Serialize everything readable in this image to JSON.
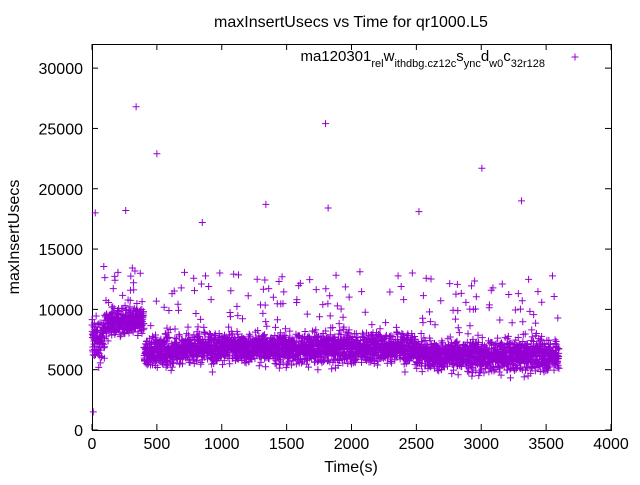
{
  "chart_data": {
    "type": "scatter",
    "title": "maxInsertUsecs vs Time for qr1000.L5",
    "xlabel": "Time(s)",
    "ylabel": "maxInsertUsecs",
    "xlim": [
      0,
      4000
    ],
    "ylim": [
      0,
      32000
    ],
    "xticks": [
      "0",
      "500",
      "1000",
      "1500",
      "2000",
      "2500",
      "3000",
      "3500",
      "4000"
    ],
    "yticks": [
      "0",
      "5000",
      "10000",
      "15000",
      "20000",
      "25000",
      "30000"
    ],
    "marker": "+",
    "color": "#9400d3",
    "legend_position": "top-right",
    "series": [
      {
        "name": "ma120301_rel_withdbg.cz12c_sync_dw0_c32r128",
        "name_parts": [
          "ma120301",
          "rel",
          "w",
          "ithdbg.cz12c",
          "s",
          "ync",
          "d",
          "w0",
          "c",
          "32r128"
        ],
        "x_range": [
          0,
          3600
        ],
        "approx_points": 3600,
        "outliers": [
          {
            "x": 340,
            "y": 26800
          },
          {
            "x": 500,
            "y": 22900
          },
          {
            "x": 1800,
            "y": 25400
          },
          {
            "x": 3005,
            "y": 21700
          },
          {
            "x": 3310,
            "y": 19000
          },
          {
            "x": 1340,
            "y": 18700
          },
          {
            "x": 1820,
            "y": 18400
          },
          {
            "x": 260,
            "y": 18200
          },
          {
            "x": 2520,
            "y": 18100
          },
          {
            "x": 850,
            "y": 17200
          },
          {
            "x": 10,
            "y": 1500
          },
          {
            "x": 25,
            "y": 18000
          }
        ],
        "band_summary": [
          {
            "x0": 0,
            "x1": 100,
            "y_center": 7500,
            "y_spread": 3500
          },
          {
            "x0": 100,
            "x1": 400,
            "y_center": 9000,
            "y_spread": 2200
          },
          {
            "x0": 400,
            "x1": 700,
            "y_center": 6500,
            "y_spread": 2300
          },
          {
            "x0": 700,
            "x1": 2500,
            "y_center": 6800,
            "y_spread": 2400
          },
          {
            "x0": 2500,
            "x1": 3600,
            "y_center": 6200,
            "y_spread": 2500
          }
        ]
      }
    ]
  }
}
